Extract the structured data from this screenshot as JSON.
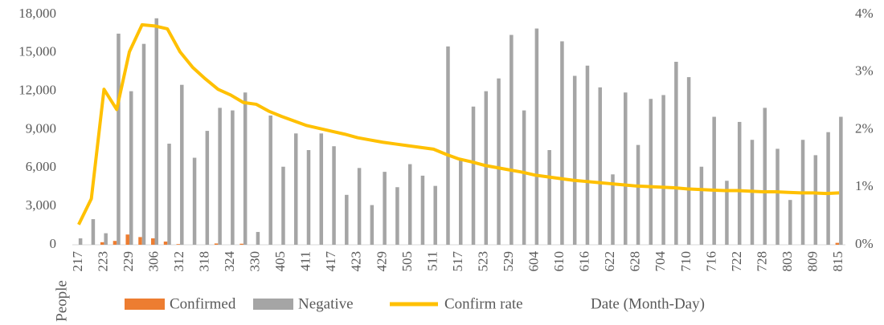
{
  "chart_data": {
    "type": "bar-line",
    "y_label": "People",
    "x_label": "Date (Month-Day)",
    "categories": [
      "217",
      null,
      "223",
      null,
      "229",
      null,
      "306",
      null,
      "312",
      null,
      "318",
      null,
      "324",
      null,
      "330",
      null,
      "405",
      null,
      "411",
      null,
      "417",
      null,
      "423",
      null,
      "429",
      null,
      "505",
      null,
      "511",
      null,
      "517",
      null,
      "523",
      null,
      "529",
      null,
      "604",
      null,
      "610",
      null,
      "616",
      null,
      "622",
      null,
      "628",
      null,
      "704",
      null,
      "710",
      null,
      "716",
      null,
      "722",
      null,
      "728",
      null,
      "803",
      null,
      "809",
      null,
      "815"
    ],
    "series": [
      {
        "name": "Confirmed",
        "type": "bar",
        "color": "#ed7d31",
        "values": [
          0,
          0,
          200,
          300,
          800,
          600,
          500,
          250,
          50,
          0,
          0,
          100,
          0,
          80,
          0,
          0,
          0,
          0,
          0,
          0,
          0,
          0,
          0,
          0,
          0,
          0,
          0,
          0,
          0,
          0,
          0,
          0,
          0,
          0,
          0,
          0,
          0,
          0,
          0,
          0,
          0,
          0,
          0,
          0,
          0,
          0,
          0,
          0,
          0,
          0,
          0,
          0,
          0,
          0,
          0,
          0,
          0,
          0,
          0,
          0,
          150
        ]
      },
      {
        "name": "Negative",
        "type": "bar",
        "color": "#a5a5a5",
        "values": [
          500,
          2000,
          900,
          16500,
          12000,
          15700,
          17700,
          7900,
          12500,
          6800,
          8900,
          10700,
          10500,
          11900,
          1000,
          10100,
          6100,
          8700,
          7400,
          8700,
          7700,
          3900,
          6000,
          3100,
          5700,
          4500,
          6300,
          5400,
          4600,
          15500,
          6700,
          10800,
          12000,
          13000,
          16400,
          10500,
          16900,
          7400,
          15900,
          13200,
          14000,
          12300,
          5500,
          11900,
          7800,
          11400,
          11700,
          14300,
          13100,
          6100,
          10000,
          5000,
          9600,
          8200,
          10700,
          7500,
          3500,
          8200,
          7000,
          8800,
          10000
        ]
      },
      {
        "name": "Confirm rate",
        "type": "line",
        "axis": "y2",
        "color": "#ffc000",
        "values": [
          0.35,
          0.8,
          2.7,
          2.35,
          3.35,
          3.82,
          3.8,
          3.75,
          3.35,
          3.08,
          2.88,
          2.7,
          2.6,
          2.47,
          2.44,
          2.32,
          2.23,
          2.15,
          2.07,
          2.02,
          1.97,
          1.92,
          1.86,
          1.82,
          1.78,
          1.75,
          1.72,
          1.69,
          1.66,
          1.57,
          1.49,
          1.44,
          1.38,
          1.34,
          1.3,
          1.26,
          1.21,
          1.18,
          1.15,
          1.12,
          1.1,
          1.08,
          1.06,
          1.04,
          1.02,
          1.01,
          1.0,
          0.99,
          0.97,
          0.96,
          0.95,
          0.94,
          0.94,
          0.93,
          0.92,
          0.92,
          0.91,
          0.9,
          0.9,
          0.89,
          0.9
        ]
      }
    ],
    "ylim": [
      0,
      18000
    ],
    "yticks": [
      0,
      {
        "value": 3000,
        "label": "3,000"
      },
      {
        "value": 6000,
        "label": "6,000"
      },
      {
        "value": 9000,
        "label": "9,000"
      },
      {
        "value": 12000,
        "label": "12,000"
      },
      {
        "value": 15000,
        "label": "15,000"
      },
      {
        "value": 18000,
        "label": "18,000"
      }
    ],
    "y2lim": [
      0,
      4
    ],
    "y2ticks": [
      {
        "value": 0,
        "label": "0%"
      },
      {
        "value": 1,
        "label": "1%"
      },
      {
        "value": 2,
        "label": "2%"
      },
      {
        "value": 3,
        "label": "3%"
      },
      {
        "value": 4,
        "label": "4%"
      }
    ],
    "grid": false,
    "legend": "bottom"
  }
}
